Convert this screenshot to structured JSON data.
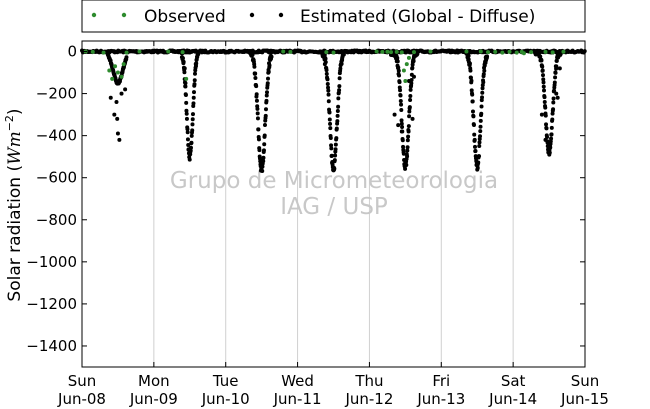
{
  "chart_data": {
    "type": "scatter",
    "ylabel_main": "Solar radiation (",
    "ylabel_unit": "Wm",
    "ylabel_exp": "−2",
    "ylabel_close": ")",
    "ylim": [
      -1500,
      50
    ],
    "yticks": [
      0,
      -200,
      -400,
      -600,
      -800,
      -1000,
      -1200,
      -1400
    ],
    "xlim": [
      0,
      7
    ],
    "xticks": [
      {
        "x": 0,
        "day": "Sun",
        "date": "Jun-08"
      },
      {
        "x": 1,
        "day": "Mon",
        "date": "Jun-09"
      },
      {
        "x": 2,
        "day": "Tue",
        "date": "Jun-10"
      },
      {
        "x": 3,
        "day": "Wed",
        "date": "Jun-11"
      },
      {
        "x": 4,
        "day": "Thu",
        "date": "Jun-12"
      },
      {
        "x": 5,
        "day": "Fri",
        "date": "Jun-13"
      },
      {
        "x": 6,
        "day": "Sat",
        "date": "Jun-14"
      },
      {
        "x": 7,
        "day": "Sun",
        "date": "Jun-15"
      }
    ],
    "grid_x": true,
    "legend_position": "top",
    "watermark": [
      "Grupo de Micrometeorologia",
      "IAG / USP"
    ],
    "series": [
      {
        "name": "Observed",
        "color": "#2e8b2e",
        "points": [
          [
            0.05,
            0
          ],
          [
            0.15,
            -2
          ],
          [
            0.3,
            -5
          ],
          [
            0.38,
            -90
          ],
          [
            0.42,
            -130
          ],
          [
            0.46,
            -70
          ],
          [
            0.5,
            -100
          ],
          [
            0.55,
            -120
          ],
          [
            0.58,
            -60
          ],
          [
            0.62,
            -5
          ],
          [
            0.8,
            0
          ],
          [
            1.2,
            0
          ],
          [
            1.4,
            -3
          ],
          [
            1.45,
            -130
          ],
          [
            2.8,
            0
          ],
          [
            2.9,
            -2
          ],
          [
            3.4,
            -3
          ],
          [
            3.5,
            -5
          ],
          [
            4.1,
            0
          ],
          [
            4.18,
            -2
          ],
          [
            4.25,
            -1
          ],
          [
            4.3,
            -3
          ],
          [
            4.38,
            -2
          ],
          [
            4.45,
            -4
          ],
          [
            4.48,
            -90
          ],
          [
            4.5,
            -140
          ],
          [
            4.52,
            -60
          ],
          [
            4.55,
            -30
          ],
          [
            4.62,
            -3
          ],
          [
            4.85,
            0
          ],
          [
            5.35,
            0
          ],
          [
            5.55,
            0
          ],
          [
            5.65,
            -3
          ],
          [
            5.75,
            -2
          ],
          [
            5.85,
            -5
          ],
          [
            5.95,
            -1
          ],
          [
            6.05,
            -5
          ],
          [
            6.12,
            -2
          ],
          [
            6.15,
            -8
          ],
          [
            6.25,
            -3
          ],
          [
            6.45,
            -2
          ],
          [
            6.55,
            -4
          ],
          [
            6.7,
            -1
          ]
        ]
      },
      {
        "name": "Estimated (Global - Diffuse)",
        "color": "#000000",
        "days": [
          {
            "center": 0.5,
            "width": 0.12,
            "peak": -150,
            "start": 0.36,
            "end": 0.62,
            "outliers": [
              [
                0.45,
                -300
              ],
              [
                0.49,
                -320
              ],
              [
                0.5,
                -390
              ],
              [
                0.52,
                -420
              ],
              [
                0.48,
                -240
              ],
              [
                0.55,
                -200
              ],
              [
                0.6,
                -180
              ],
              [
                0.4,
                -220
              ]
            ]
          },
          {
            "center": 1.5,
            "width": 0.075,
            "peak": -500,
            "start": 1.38,
            "end": 1.62,
            "outliers": [
              [
                1.44,
                -150
              ],
              [
                1.43,
                -80
              ]
            ]
          },
          {
            "center": 2.5,
            "width": 0.09,
            "peak": -560,
            "start": 2.34,
            "end": 2.64,
            "outliers": [
              [
                2.36,
                -20
              ],
              [
                2.62,
                -40
              ]
            ]
          },
          {
            "center": 3.5,
            "width": 0.09,
            "peak": -555,
            "start": 3.34,
            "end": 3.65,
            "outliers": [
              [
                3.38,
                -60
              ],
              [
                3.62,
                -40
              ]
            ]
          },
          {
            "center": 4.5,
            "width": 0.09,
            "peak": -545,
            "start": 4.3,
            "end": 4.67,
            "outliers": [
              [
                4.35,
                -300
              ],
              [
                4.4,
                -350
              ],
              [
                4.45,
                -380
              ],
              [
                4.6,
                -320
              ],
              [
                4.62,
                -120
              ],
              [
                4.55,
                -140
              ]
            ]
          },
          {
            "center": 5.5,
            "width": 0.09,
            "peak": -545,
            "start": 5.35,
            "end": 5.64,
            "outliers": [
              [
                5.38,
                -20
              ],
              [
                5.62,
                -30
              ]
            ]
          },
          {
            "center": 6.5,
            "width": 0.09,
            "peak": -480,
            "start": 6.3,
            "end": 6.68,
            "outliers": [
              [
                6.4,
                -300
              ],
              [
                6.6,
                -200
              ],
              [
                6.62,
                -220
              ],
              [
                6.65,
                -80
              ],
              [
                6.45,
                -420
              ]
            ]
          }
        ]
      }
    ]
  }
}
